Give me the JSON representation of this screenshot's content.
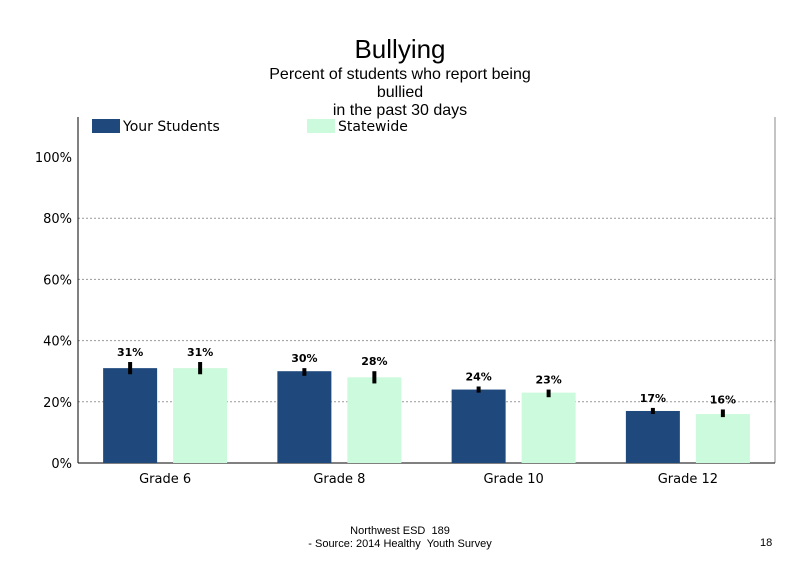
{
  "title": "Bullying",
  "subtitle": "Percent of students  who report being\nbullied\nin the past 30 days",
  "footer": {
    "line1": "Northwest ESD  189",
    "line2": "- Source: 2014 Healthy  Youth Survey"
  },
  "page_number": "18",
  "chart_data": {
    "type": "bar",
    "categories": [
      "Grade 6",
      "Grade 8",
      "Grade 10",
      "Grade 12"
    ],
    "series": [
      {
        "name": "Your Students",
        "color": "#1f497d",
        "values": [
          31,
          30,
          24,
          17
        ],
        "labels": [
          "31%",
          "30%",
          "24%",
          "17%"
        ],
        "error": [
          [
            29,
            33
          ],
          [
            28.5,
            31
          ],
          [
            23,
            25
          ],
          [
            16,
            18
          ]
        ]
      },
      {
        "name": "Statewide",
        "color": "#ccfadc",
        "values": [
          31,
          28,
          23,
          16
        ],
        "labels": [
          "31%",
          "28%",
          "23%",
          "16%"
        ],
        "error": [
          [
            29,
            33
          ],
          [
            26,
            30
          ],
          [
            21.5,
            24
          ],
          [
            15,
            17.5
          ]
        ]
      }
    ],
    "yticks": [
      "0%",
      "20%",
      "40%",
      "60%",
      "80%",
      "100%"
    ],
    "ytick_values": [
      0,
      20,
      40,
      60,
      80,
      100
    ],
    "ylim": [
      0,
      112
    ],
    "grid": "dotted horizontal",
    "legend_position": "top"
  }
}
